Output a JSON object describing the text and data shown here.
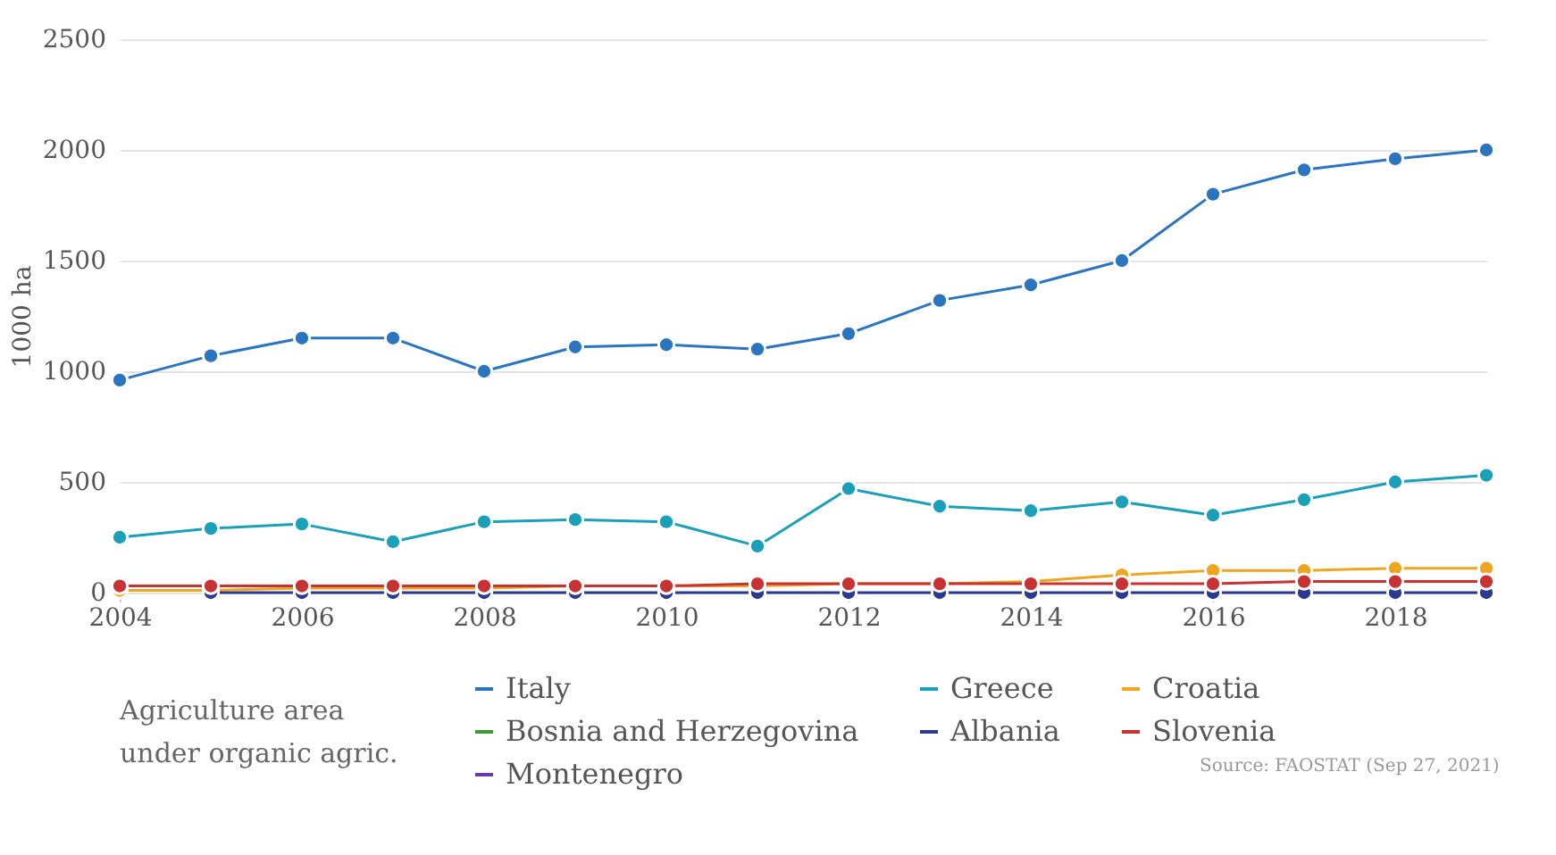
{
  "chart_data": {
    "type": "line",
    "ylabel": "1000 ha",
    "legend_title": "Agriculture area under organic agric.",
    "annotations": [
      "Source: FAOSTAT (Sep 27, 2021)"
    ],
    "x": [
      2004,
      2005,
      2006,
      2007,
      2008,
      2009,
      2010,
      2011,
      2012,
      2013,
      2014,
      2015,
      2016,
      2017,
      2018,
      2019
    ],
    "xlim": [
      2004,
      2019
    ],
    "xticks": [
      2004,
      2006,
      2008,
      2010,
      2012,
      2014,
      2016,
      2018
    ],
    "ylim": [
      0,
      2500
    ],
    "yticks": [
      0,
      500,
      1000,
      1500,
      2000,
      2500
    ],
    "grid": "y",
    "legend": "bottom",
    "marker": "circle",
    "line_style": "solid",
    "series": [
      {
        "name": "Italy",
        "color": "#2a74c0",
        "values": [
          960,
          1070,
          1150,
          1150,
          1000,
          1110,
          1120,
          1100,
          1170,
          1320,
          1390,
          1500,
          1800,
          1910,
          1960,
          2000
        ]
      },
      {
        "name": "Greece",
        "color": "#1aa0b8",
        "values": [
          250,
          290,
          310,
          230,
          320,
          330,
          320,
          210,
          470,
          390,
          370,
          410,
          350,
          420,
          500,
          530
        ]
      },
      {
        "name": "Croatia",
        "color": "#f0a520",
        "values": [
          10,
          10,
          20,
          20,
          20,
          30,
          30,
          30,
          40,
          40,
          50,
          80,
          100,
          100,
          110,
          110
        ]
      },
      {
        "name": "Bosnia and Herzegovina",
        "color": "#3a9a3a",
        "values": [
          null,
          null,
          null,
          null,
          null,
          null,
          null,
          null,
          null,
          null,
          null,
          null,
          null,
          null,
          null,
          null
        ]
      },
      {
        "name": "Albania",
        "color": "#2b3990",
        "values": [
          null,
          0,
          0,
          0,
          0,
          0,
          0,
          0,
          0,
          0,
          0,
          0,
          0,
          0,
          0,
          0
        ]
      },
      {
        "name": "Slovenia",
        "color": "#c83232",
        "values": [
          30,
          30,
          30,
          30,
          30,
          30,
          30,
          40,
          40,
          40,
          40,
          40,
          40,
          50,
          50,
          50
        ]
      },
      {
        "name": "Montenegro",
        "color": "#6a3aad",
        "values": [
          null,
          null,
          null,
          null,
          null,
          null,
          null,
          null,
          null,
          null,
          null,
          null,
          null,
          null,
          null,
          null
        ]
      }
    ]
  }
}
